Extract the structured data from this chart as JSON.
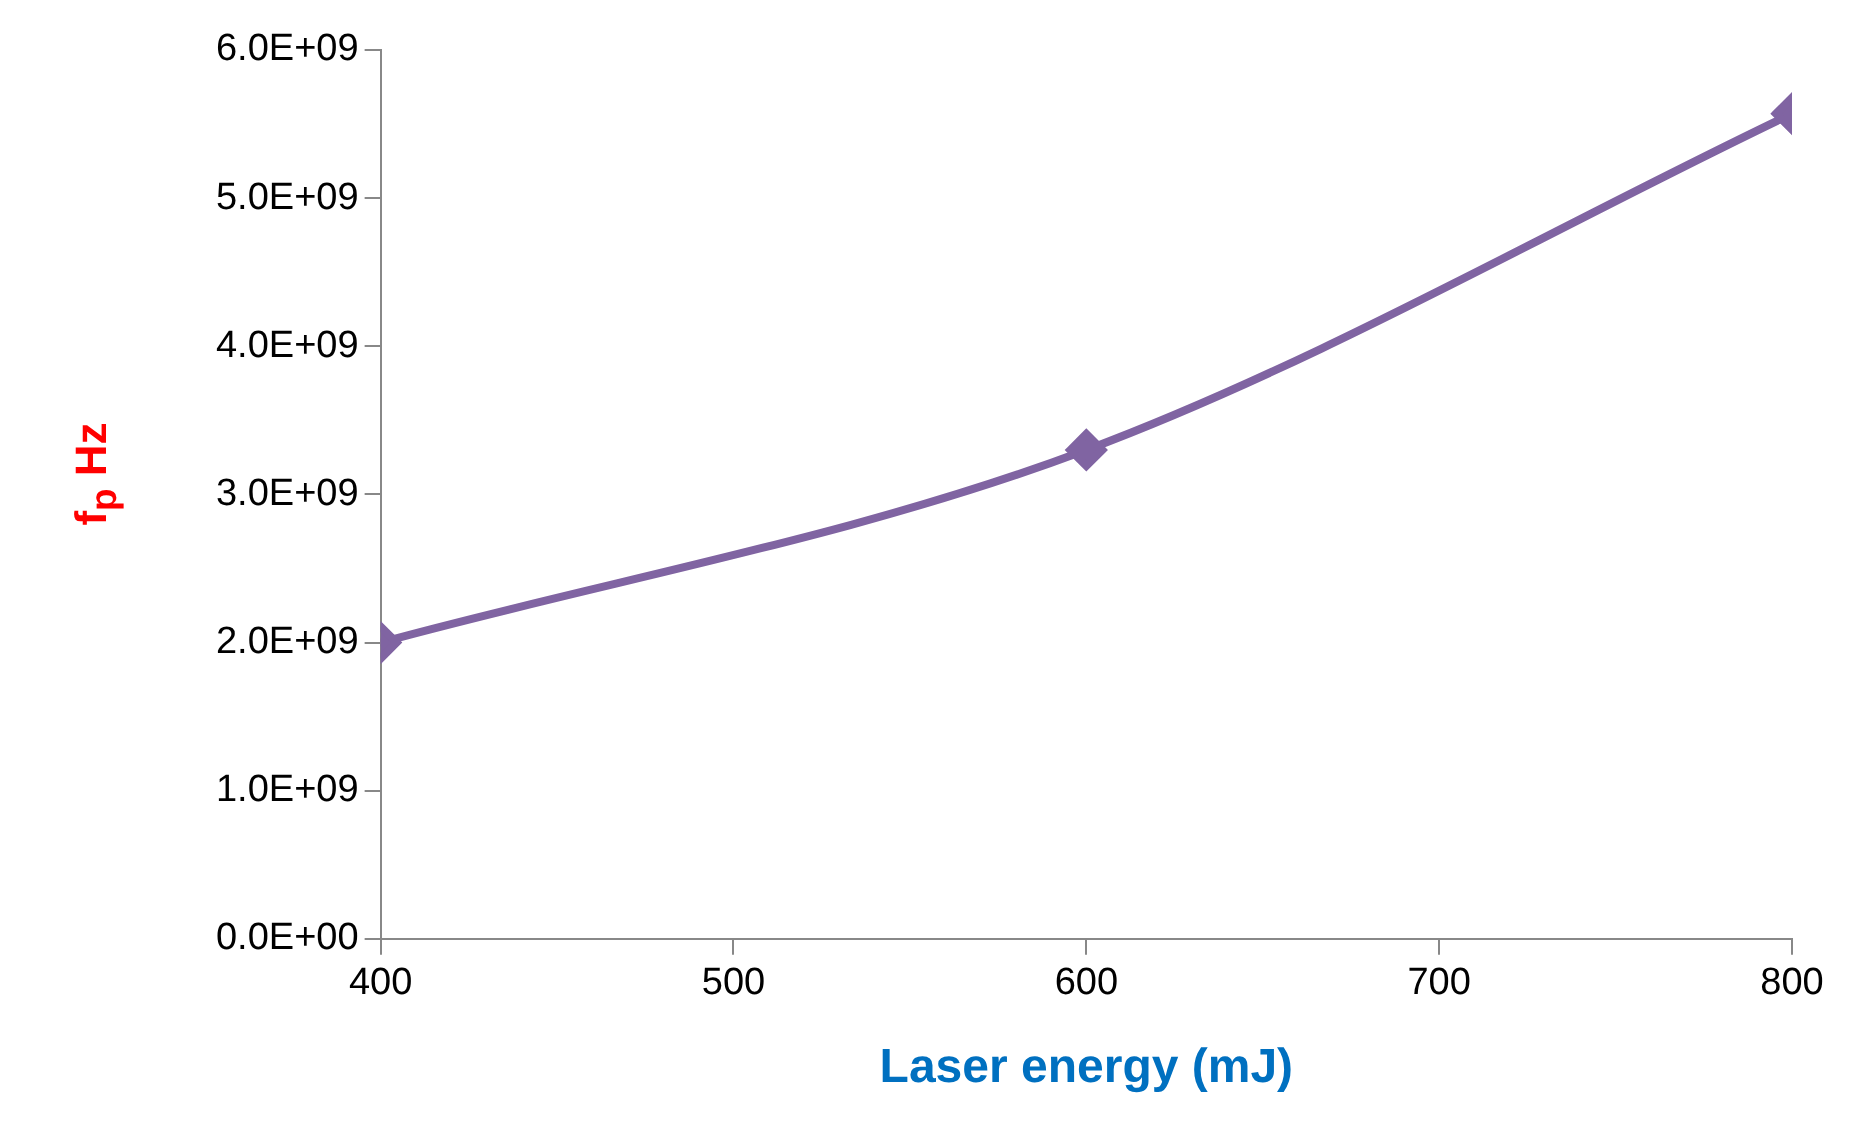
{
  "chart_data": {
    "type": "line",
    "xlabel": "Laser energy (mJ)",
    "ylabel": "f$_{p}$ Hz",
    "x": [
      400,
      600,
      800
    ],
    "series": [
      {
        "color": "#8064a2",
        "values": [
          2000000000.0,
          3300000000.0,
          5570000000.0
        ]
      }
    ],
    "xlim": [
      400,
      800
    ],
    "xticks": [
      400,
      500,
      600,
      700,
      800
    ],
    "ylim": [
      0,
      6000000000.0
    ],
    "yticks": [
      {
        "value": 0,
        "label": "0.0E+00"
      },
      {
        "value": 1000000000.0,
        "label": "1.0E+09"
      },
      {
        "value": 2000000000.0,
        "label": "2.0E+09"
      },
      {
        "value": 3000000000.0,
        "label": "3.0E+09"
      },
      {
        "value": 4000000000.0,
        "label": "4.0E+09"
      },
      {
        "value": 5000000000.0,
        "label": "5.0E+09"
      },
      {
        "value": 6000000000.0,
        "label": "6.0E+09"
      }
    ],
    "grid": false,
    "legend": false,
    "marker": "diamond",
    "line_style": "solid"
  }
}
